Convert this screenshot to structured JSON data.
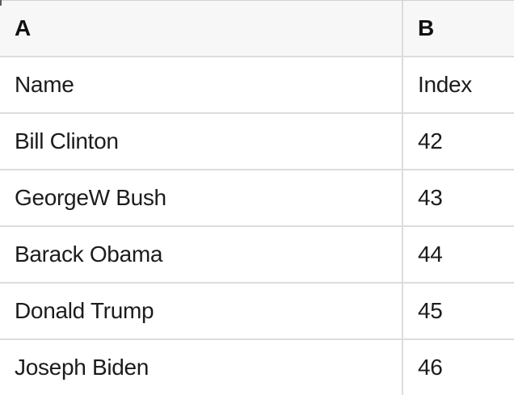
{
  "table": {
    "columns": [
      {
        "label": "A"
      },
      {
        "label": "B"
      }
    ],
    "rows": [
      [
        "Name",
        "Index"
      ],
      [
        "Bill Clinton",
        "42"
      ],
      [
        "GeorgeW Bush",
        "43"
      ],
      [
        "Barack Obama",
        "44"
      ],
      [
        "Donald Trump",
        "45"
      ],
      [
        "Joseph Biden",
        "46"
      ]
    ]
  },
  "colors": {
    "header_bg": "#f7f7f7",
    "row_bg": "#ffffff",
    "grid_line": "#dcdcdc",
    "top_border": "#d2d2d2",
    "text": "#1c1c1c",
    "header_text": "#111111"
  }
}
